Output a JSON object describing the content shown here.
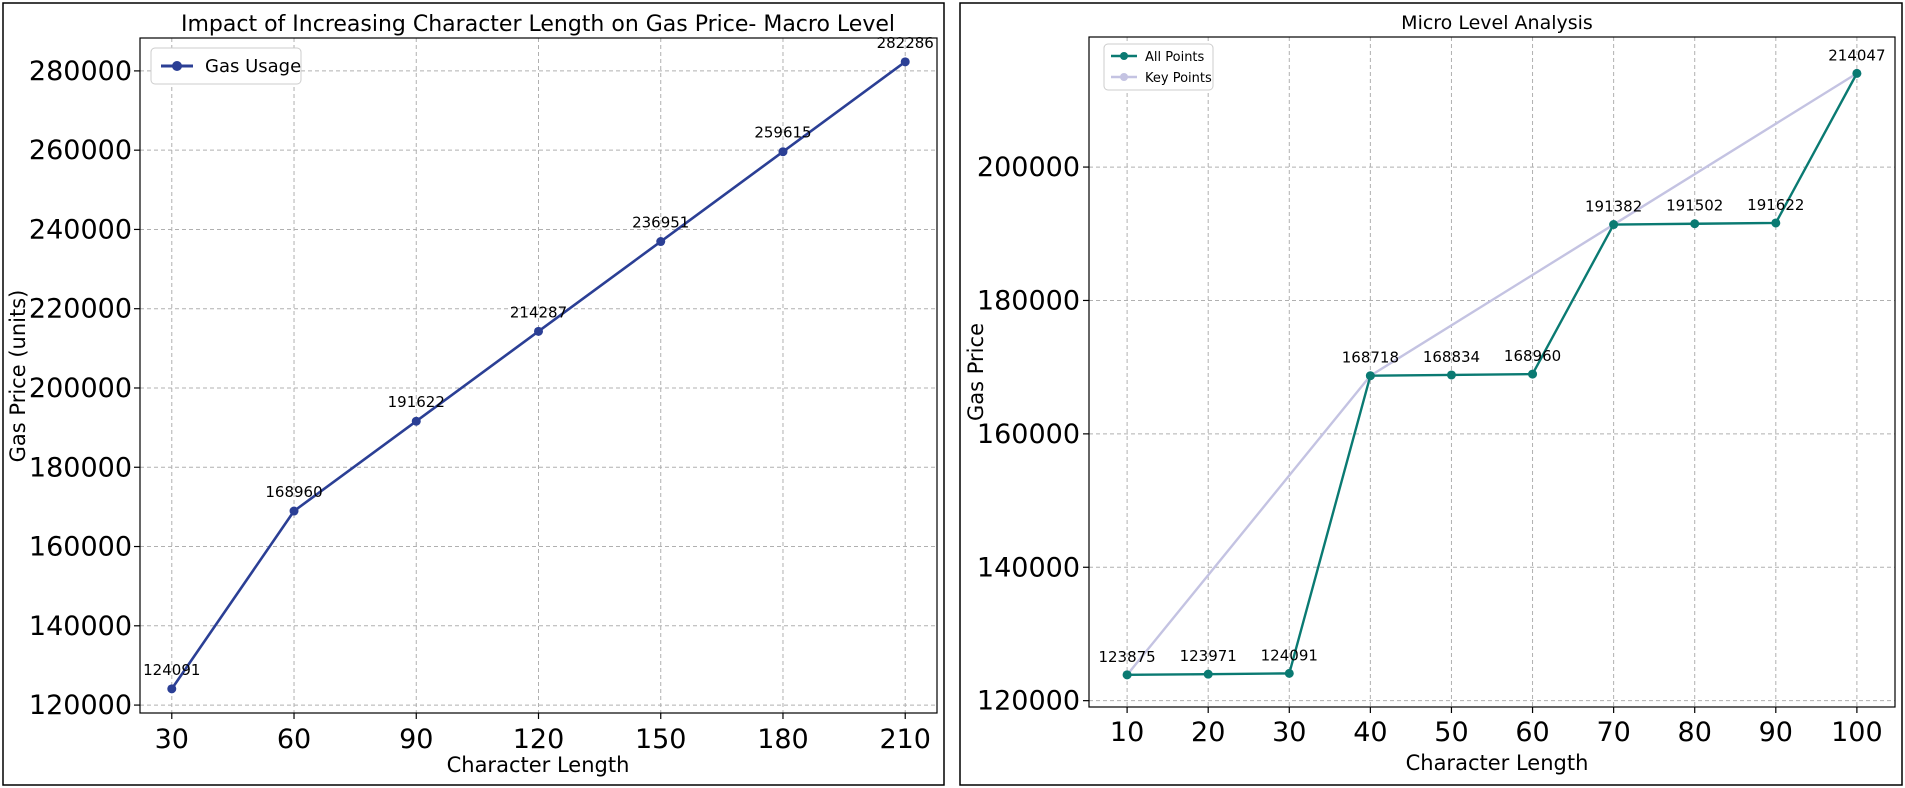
{
  "chart_data": [
    {
      "type": "line",
      "title": "Impact of Increasing Character Length on Gas Price- Macro Level",
      "xlabel": "Character Length",
      "ylabel": "Gas Price (units)",
      "x": [
        30,
        60,
        90,
        120,
        150,
        180,
        210
      ],
      "xticks": [
        "30",
        "60",
        "90",
        "120",
        "150",
        "180",
        "210"
      ],
      "xlim": [
        22.2,
        217.8
      ],
      "ylim": [
        118000,
        288300
      ],
      "yticks": [
        "120000",
        "140000",
        "160000",
        "180000",
        "200000",
        "220000",
        "240000",
        "260000",
        "280000"
      ],
      "grid": true,
      "legend_position": "upper left",
      "series": [
        {
          "name": "Gas Usage",
          "color": "#2b3f95",
          "values": [
            124091,
            168960,
            191622,
            214287,
            236951,
            259615,
            282286
          ],
          "data_labels": [
            "124091",
            "168960",
            "191622",
            "214287",
            "236951",
            "259615",
            "282286"
          ]
        }
      ]
    },
    {
      "type": "line",
      "title": "Micro Level Analysis",
      "xlabel": "Character Length",
      "ylabel": "Gas Price",
      "x": [
        10,
        20,
        30,
        40,
        50,
        60,
        70,
        80,
        90,
        100
      ],
      "xticks": [
        "10",
        "20",
        "30",
        "40",
        "50",
        "60",
        "70",
        "80",
        "90",
        "100"
      ],
      "xlim": [
        5.3,
        104.7
      ],
      "ylim": [
        119050,
        219500
      ],
      "yticks": [
        "120000",
        "140000",
        "160000",
        "180000",
        "200000"
      ],
      "grid": true,
      "legend_position": "upper left",
      "series": [
        {
          "name": "All Points",
          "color": "#0a7a72",
          "x": [
            10,
            20,
            30,
            40,
            50,
            60,
            70,
            80,
            90,
            100
          ],
          "values": [
            123875,
            123971,
            124091,
            168718,
            168834,
            168960,
            191382,
            191502,
            191622,
            214047
          ],
          "data_labels": [
            "123875",
            "123971",
            "124091",
            "168718",
            "168834",
            "168960",
            "191382",
            "191502",
            "191622",
            "214047"
          ]
        },
        {
          "name": "Key Points",
          "color": "#c4c3e2",
          "x": [
            10,
            40,
            70,
            100
          ],
          "values": [
            123875,
            168718,
            191382,
            214047
          ]
        }
      ]
    }
  ]
}
